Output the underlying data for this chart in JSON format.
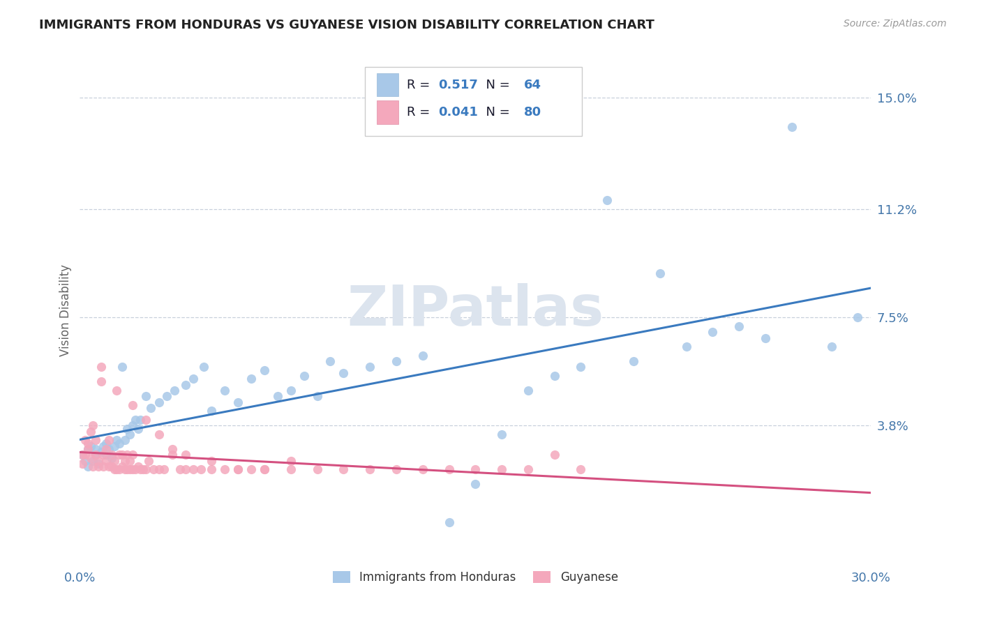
{
  "title": "IMMIGRANTS FROM HONDURAS VS GUYANESE VISION DISABILITY CORRELATION CHART",
  "source": "Source: ZipAtlas.com",
  "ylabel": "Vision Disability",
  "xlim": [
    0.0,
    0.3
  ],
  "ylim": [
    -0.01,
    0.165
  ],
  "xticklabels": [
    "0.0%",
    "30.0%"
  ],
  "ytick_positions": [
    0.038,
    0.075,
    0.112,
    0.15
  ],
  "ytick_labels": [
    "3.8%",
    "7.5%",
    "11.2%",
    "15.0%"
  ],
  "grid_color": "#c8d0dc",
  "background_color": "#ffffff",
  "watermark": "ZIPatlas",
  "watermark_color": "#dce4ee",
  "series": [
    {
      "label": "Immigrants from Honduras",
      "R": "0.517",
      "N": "64",
      "scatter_color": "#a8c8e8",
      "trend_color": "#3a7abf"
    },
    {
      "label": "Guyanese",
      "R": "0.041",
      "N": "80",
      "scatter_color": "#f4a8bc",
      "trend_color": "#d45080"
    }
  ],
  "legend_text_color": "#1a1a2e",
  "legend_num_color": "#3a7abf",
  "tick_color": "#4477aa",
  "honduras_x": [
    0.001,
    0.002,
    0.003,
    0.003,
    0.004,
    0.005,
    0.006,
    0.006,
    0.007,
    0.008,
    0.009,
    0.01,
    0.01,
    0.011,
    0.012,
    0.013,
    0.014,
    0.015,
    0.016,
    0.017,
    0.018,
    0.019,
    0.02,
    0.021,
    0.022,
    0.023,
    0.025,
    0.027,
    0.03,
    0.033,
    0.036,
    0.04,
    0.043,
    0.047,
    0.05,
    0.055,
    0.06,
    0.065,
    0.07,
    0.075,
    0.08,
    0.085,
    0.09,
    0.095,
    0.1,
    0.11,
    0.12,
    0.13,
    0.14,
    0.15,
    0.16,
    0.17,
    0.18,
    0.19,
    0.2,
    0.21,
    0.22,
    0.23,
    0.24,
    0.25,
    0.26,
    0.27,
    0.285,
    0.295
  ],
  "honduras_y": [
    0.028,
    0.026,
    0.03,
    0.024,
    0.031,
    0.026,
    0.028,
    0.03,
    0.025,
    0.029,
    0.031,
    0.028,
    0.032,
    0.03,
    0.027,
    0.031,
    0.033,
    0.032,
    0.058,
    0.033,
    0.037,
    0.035,
    0.038,
    0.04,
    0.037,
    0.04,
    0.048,
    0.044,
    0.046,
    0.048,
    0.05,
    0.052,
    0.054,
    0.058,
    0.043,
    0.05,
    0.046,
    0.054,
    0.057,
    0.048,
    0.05,
    0.055,
    0.048,
    0.06,
    0.056,
    0.058,
    0.06,
    0.062,
    0.005,
    0.018,
    0.035,
    0.05,
    0.055,
    0.058,
    0.115,
    0.06,
    0.09,
    0.065,
    0.07,
    0.072,
    0.068,
    0.14,
    0.065,
    0.075
  ],
  "guyanese_x": [
    0.001,
    0.001,
    0.002,
    0.002,
    0.003,
    0.003,
    0.004,
    0.004,
    0.005,
    0.005,
    0.006,
    0.006,
    0.007,
    0.007,
    0.008,
    0.008,
    0.009,
    0.009,
    0.01,
    0.01,
    0.011,
    0.011,
    0.012,
    0.012,
    0.013,
    0.013,
    0.014,
    0.015,
    0.015,
    0.016,
    0.016,
    0.017,
    0.017,
    0.018,
    0.018,
    0.019,
    0.019,
    0.02,
    0.02,
    0.021,
    0.022,
    0.023,
    0.024,
    0.025,
    0.026,
    0.028,
    0.03,
    0.032,
    0.035,
    0.038,
    0.04,
    0.043,
    0.046,
    0.05,
    0.055,
    0.06,
    0.065,
    0.07,
    0.08,
    0.09,
    0.1,
    0.11,
    0.12,
    0.13,
    0.14,
    0.15,
    0.16,
    0.17,
    0.18,
    0.19,
    0.014,
    0.02,
    0.025,
    0.03,
    0.035,
    0.04,
    0.05,
    0.06,
    0.07,
    0.08
  ],
  "guyanese_y": [
    0.028,
    0.025,
    0.033,
    0.028,
    0.03,
    0.032,
    0.027,
    0.036,
    0.024,
    0.038,
    0.028,
    0.033,
    0.024,
    0.026,
    0.053,
    0.058,
    0.024,
    0.028,
    0.026,
    0.03,
    0.024,
    0.033,
    0.024,
    0.028,
    0.023,
    0.026,
    0.023,
    0.028,
    0.023,
    0.024,
    0.028,
    0.023,
    0.026,
    0.023,
    0.028,
    0.023,
    0.026,
    0.023,
    0.028,
    0.023,
    0.024,
    0.023,
    0.023,
    0.023,
    0.026,
    0.023,
    0.023,
    0.023,
    0.028,
    0.023,
    0.023,
    0.023,
    0.023,
    0.026,
    0.023,
    0.023,
    0.023,
    0.023,
    0.026,
    0.023,
    0.023,
    0.023,
    0.023,
    0.023,
    0.023,
    0.023,
    0.023,
    0.023,
    0.028,
    0.023,
    0.05,
    0.045,
    0.04,
    0.035,
    0.03,
    0.028,
    0.023,
    0.023,
    0.023,
    0.023
  ]
}
